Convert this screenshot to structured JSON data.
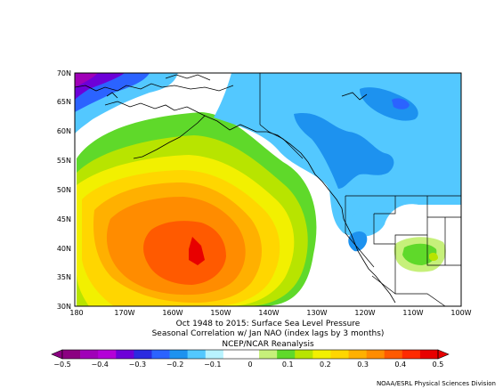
{
  "map": {
    "lat_labels": [
      "70N",
      "65N",
      "60N",
      "55N",
      "50N",
      "45N",
      "40N",
      "35N",
      "30N"
    ],
    "lon_labels": [
      "180",
      "170W",
      "160W",
      "150W",
      "140W",
      "130W",
      "120W",
      "110W",
      "100W"
    ]
  },
  "title": {
    "line1": "Oct 1948 to 2015: Surface Sea Level Pressure",
    "line2": "Seasonal Correlation w/ Jan NAO (index lags by 3 months)",
    "line3": "NCEP/NCAR Reanalysis"
  },
  "colorbar": {
    "ticks": [
      "−0.5",
      "−0.4",
      "−0.3",
      "−0.2",
      "−0.1",
      "0",
      "0.1",
      "0.2",
      "0.3",
      "0.4",
      "0.5"
    ],
    "colors": [
      "#8b0081",
      "#a000b8",
      "#b400d8",
      "#6d00d8",
      "#2b2be0",
      "#2b63ff",
      "#1d92ef",
      "#53c8ff",
      "#b8f3ff",
      "#ffffff",
      "#ffffff",
      "#c6f07a",
      "#5fd92a",
      "#b8e400",
      "#f2f000",
      "#ffd600",
      "#ffb000",
      "#ff8c00",
      "#ff5a00",
      "#ff2a00",
      "#e80000"
    ]
  },
  "credit": "NOAA/ESRL Physical Sciences Division"
}
